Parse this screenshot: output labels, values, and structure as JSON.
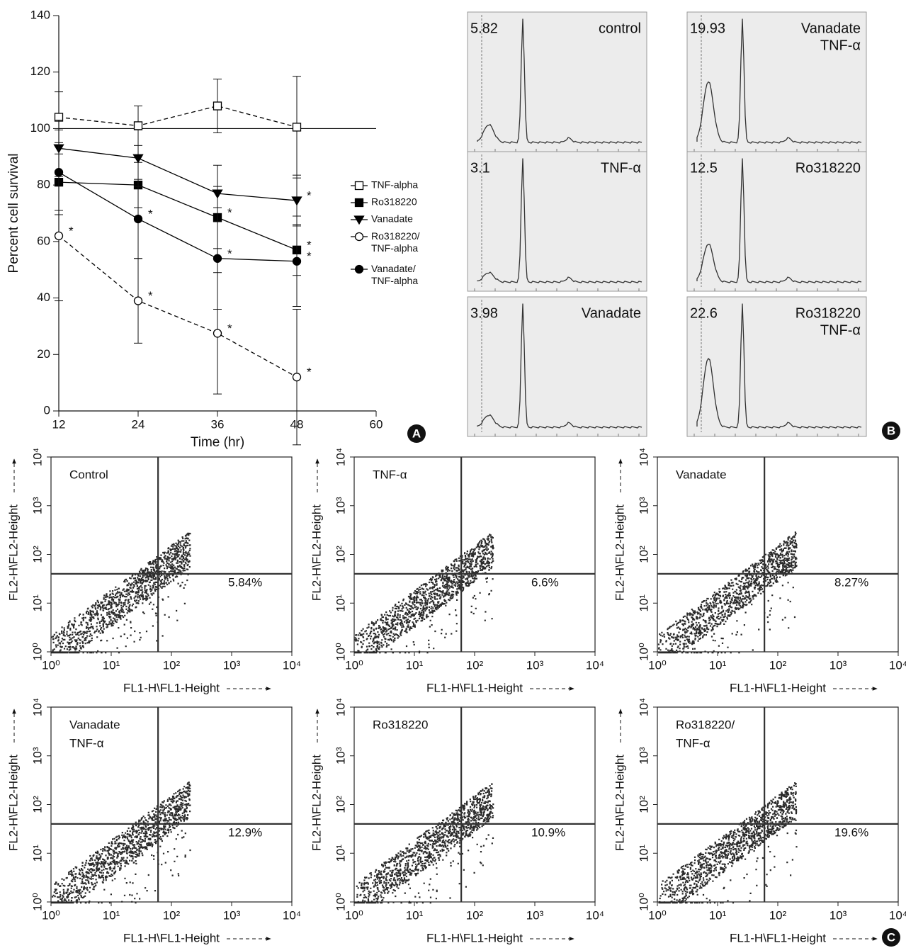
{
  "chart_data": [
    {
      "type": "line",
      "panel_label": "A",
      "x_label": "Time (hr)",
      "y_label": "Percent cell survival",
      "x": [
        12,
        24,
        36,
        48
      ],
      "xlim": [
        12,
        60
      ],
      "ylim": [
        0,
        140
      ],
      "xticks": [
        12,
        24,
        36,
        48,
        60
      ],
      "yticks": [
        0,
        20,
        40,
        60,
        80,
        100,
        120,
        140
      ],
      "hline": 100,
      "series": [
        {
          "name": "TNF-alpha",
          "color": "#000000",
          "marker": "square",
          "filled": false,
          "dashed": true,
          "values": [
            104,
            101,
            108,
            100.5
          ],
          "errors": [
            9,
            7,
            9.5,
            18
          ],
          "annotations": [
            null,
            null,
            null,
            null
          ]
        },
        {
          "name": "Ro318220",
          "color": "#000000",
          "marker": "square",
          "filled": true,
          "dashed": false,
          "values": [
            81,
            80,
            68.5,
            57
          ],
          "errors": [
            10,
            8,
            11,
            9
          ],
          "annotations": [
            null,
            null,
            "*",
            "*"
          ]
        },
        {
          "name": "Vanadate",
          "color": "#000000",
          "marker": "triangle",
          "filled": true,
          "dashed": false,
          "values": [
            93,
            89.5,
            77,
            74.5
          ],
          "errors": [
            10,
            10,
            10,
            9
          ],
          "annotations": [
            null,
            null,
            null,
            "*"
          ]
        },
        {
          "name": "Ro318220/TNF-alpha",
          "color": "#000000",
          "marker": "circle",
          "filled": false,
          "dashed": true,
          "values": [
            62,
            39,
            27.5,
            12
          ],
          "errors": [
            23,
            15,
            21.5,
            24
          ],
          "annotations": [
            "*",
            "*",
            "*",
            "*"
          ]
        },
        {
          "name": "Vanadate/TNF-alpha",
          "color": "#000000",
          "marker": "circle",
          "filled": true,
          "dashed": false,
          "values": [
            84.5,
            68,
            54,
            53
          ],
          "errors": [
            15,
            14,
            18,
            16
          ],
          "annotations": [
            null,
            "*",
            "*",
            "*"
          ]
        }
      ]
    },
    {
      "type": "profile",
      "panel_label": "B",
      "panels": [
        {
          "label_lines": [
            "control"
          ],
          "value": 5.82
        },
        {
          "label_lines": [
            "TNF-α"
          ],
          "value": 3.1
        },
        {
          "label_lines": [
            "Vanadate"
          ],
          "value": 3.98
        },
        {
          "label_lines": [
            "Vanadate",
            "TNF-α"
          ],
          "value": 19.93
        },
        {
          "label_lines": [
            "Ro318220"
          ],
          "value": 12.5
        },
        {
          "label_lines": [
            "Ro318220",
            "TNF-α"
          ],
          "value": 22.6
        }
      ]
    },
    {
      "type": "scatter",
      "panel_label": "C",
      "x_label": "FL1-H\\FL1-Height",
      "y_label": "FL2-H\\FL2-Height",
      "log_scale": true,
      "xlim": [
        1,
        10000
      ],
      "ylim": [
        1,
        10000
      ],
      "xticks": [
        {
          "value": 1,
          "label": "10⁰"
        },
        {
          "value": 10,
          "label": "10¹"
        },
        {
          "value": 100,
          "label": "10²"
        },
        {
          "value": 1000,
          "label": "10³"
        },
        {
          "value": 10000,
          "label": "10⁴"
        }
      ],
      "yticks": [
        {
          "value": 1,
          "label": "10⁰"
        },
        {
          "value": 10,
          "label": "10¹"
        },
        {
          "value": 100,
          "label": "10²"
        },
        {
          "value": 1000,
          "label": "10³"
        },
        {
          "value": 10000,
          "label": "10⁴"
        }
      ],
      "quadrant_x": 60,
      "quadrant_y": 40,
      "panels": [
        {
          "label_lines": [
            "Control"
          ],
          "value": 5.84,
          "value_label": "5.84%"
        },
        {
          "label_lines": [
            "TNF-α"
          ],
          "value": 6.6,
          "value_label": "6.6%"
        },
        {
          "label_lines": [
            "Vanadate"
          ],
          "value": 8.27,
          "value_label": "8.27%"
        },
        {
          "label_lines": [
            "Vanadate",
            "TNF-α"
          ],
          "value": 12.9,
          "value_label": "12.9%"
        },
        {
          "label_lines": [
            "Ro318220"
          ],
          "value": 10.9,
          "value_label": "10.9%"
        },
        {
          "label_lines": [
            "Ro318220/",
            "TNF-α"
          ],
          "value": 19.6,
          "value_label": "19.6%"
        }
      ]
    }
  ]
}
